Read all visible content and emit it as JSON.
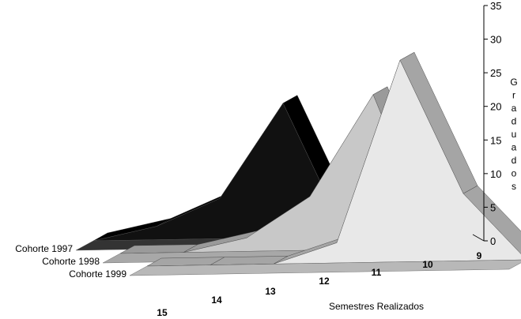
{
  "chart_data": {
    "type": "area",
    "title": "",
    "xlabel": "Semestres Realizados",
    "ylabel": "Graduados",
    "categories": [
      "15",
      "14",
      "13",
      "12",
      "11",
      "10",
      "9"
    ],
    "ylim": [
      0,
      35
    ],
    "yticks": [
      "0",
      "5",
      "10",
      "15",
      "20",
      "25",
      "30",
      "35"
    ],
    "series": [
      {
        "name": "Cohorte 1997",
        "values": [
          0,
          2,
          6,
          20,
          0,
          0,
          0
        ],
        "color": "#111111"
      },
      {
        "name": "Cohorte 1998",
        "values": [
          0,
          0,
          2,
          8,
          23,
          0,
          0
        ],
        "color": "#c8c8c8"
      },
      {
        "name": "Cohorte 1999",
        "values": [
          0,
          0,
          0,
          3,
          30,
          10,
          0
        ],
        "color": "#e6e6e6"
      }
    ],
    "grid": false,
    "legend": "left"
  }
}
